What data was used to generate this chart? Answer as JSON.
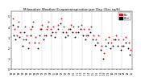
{
  "title": "Milwaukee Weather Evapotranspiration per Day (Ozs sq/ft)",
  "title_fontsize": 3.0,
  "background_color": "#ffffff",
  "plot_bg_color": "#ffffff",
  "grid_color": "#aaaaaa",
  "xlim": [
    0,
    36
  ],
  "ylim": [
    0,
    5.5
  ],
  "ytick_labels": [
    "0",
    "1",
    "2",
    "3",
    "4",
    "5"
  ],
  "ytick_vals": [
    0,
    1,
    2,
    3,
    4,
    5
  ],
  "ytick_fontsize": 2.5,
  "xtick_fontsize": 2.0,
  "xtick_labels": [
    "'94",
    "'95",
    "'96",
    "'97",
    "'98",
    "'99",
    "'00",
    "'01",
    "'02",
    "'03",
    "'04",
    "'05",
    "'06",
    "'07",
    "'08",
    "'09",
    "'10",
    "'11",
    "'12",
    "'13",
    "'14",
    "'15",
    "'16",
    "'17",
    "'18",
    "'19",
    "'20",
    "'21",
    "'22",
    "'23",
    "'24",
    "'25"
  ],
  "vline_positions": [
    3,
    6,
    9,
    12,
    15,
    18,
    21,
    24,
    27,
    30,
    33
  ],
  "red_x": [
    0.5,
    0.8,
    1.5,
    2.0,
    2.5,
    3.5,
    4.0,
    4.5,
    5.2,
    5.8,
    6.5,
    7.2,
    8.0,
    8.5,
    9.0,
    9.8,
    10.5,
    11.0,
    11.8,
    12.5,
    13.2,
    14.0,
    14.8,
    15.5,
    16.2,
    17.0,
    17.8,
    18.5,
    19.2,
    20.0,
    20.8,
    21.5,
    22.2,
    23.0,
    23.8,
    24.5,
    25.2,
    26.0,
    26.8,
    27.5,
    28.2,
    29.0,
    29.8,
    30.5,
    31.2,
    32.0,
    32.8,
    33.5,
    34.2,
    35.0,
    35.5
  ],
  "red_y": [
    4.8,
    3.8,
    3.2,
    4.5,
    3.5,
    2.8,
    4.0,
    3.2,
    2.5,
    3.8,
    4.5,
    3.0,
    2.5,
    3.8,
    4.2,
    3.2,
    3.8,
    4.5,
    3.8,
    4.0,
    3.5,
    4.2,
    4.8,
    4.0,
    3.5,
    3.8,
    4.2,
    4.0,
    3.5,
    4.0,
    4.2,
    3.8,
    3.2,
    3.8,
    4.0,
    3.2,
    2.8,
    3.2,
    2.2,
    1.5,
    2.8,
    3.0,
    2.5,
    2.8,
    3.2,
    2.8,
    2.2,
    2.8,
    3.0,
    2.5,
    1.8
  ],
  "black_x": [
    0.3,
    0.6,
    1.2,
    1.8,
    2.3,
    3.2,
    3.8,
    4.3,
    5.0,
    5.6,
    6.3,
    7.0,
    7.8,
    8.3,
    8.8,
    9.6,
    10.3,
    10.8,
    11.6,
    12.3,
    13.0,
    13.8,
    14.6,
    15.3,
    16.0,
    16.8,
    17.6,
    18.3,
    19.0,
    19.8,
    20.6,
    21.3,
    22.0,
    22.8,
    23.6,
    24.3,
    25.0,
    25.8,
    26.6,
    27.3,
    28.0,
    28.8,
    29.6,
    30.3,
    31.0,
    31.8,
    32.6,
    33.3,
    34.0,
    34.8,
    35.3
  ],
  "black_y": [
    4.2,
    3.2,
    2.8,
    4.0,
    3.0,
    2.2,
    3.5,
    2.8,
    2.0,
    3.2,
    4.0,
    2.5,
    2.0,
    3.2,
    3.8,
    2.8,
    3.2,
    4.0,
    3.2,
    3.5,
    3.0,
    3.8,
    4.3,
    3.5,
    3.0,
    3.2,
    3.8,
    3.5,
    3.0,
    3.5,
    3.8,
    3.2,
    2.8,
    3.2,
    3.5,
    2.8,
    2.3,
    2.5,
    1.8,
    1.0,
    2.2,
    2.5,
    2.0,
    2.2,
    2.8,
    2.2,
    1.8,
    2.2,
    2.5,
    2.0,
    1.4
  ],
  "dot_size": 1.8,
  "legend_label_red": "ETo",
  "legend_label_black": "ETref",
  "legend_box_color": "#ffffff",
  "legend_box_edge": "#000000"
}
